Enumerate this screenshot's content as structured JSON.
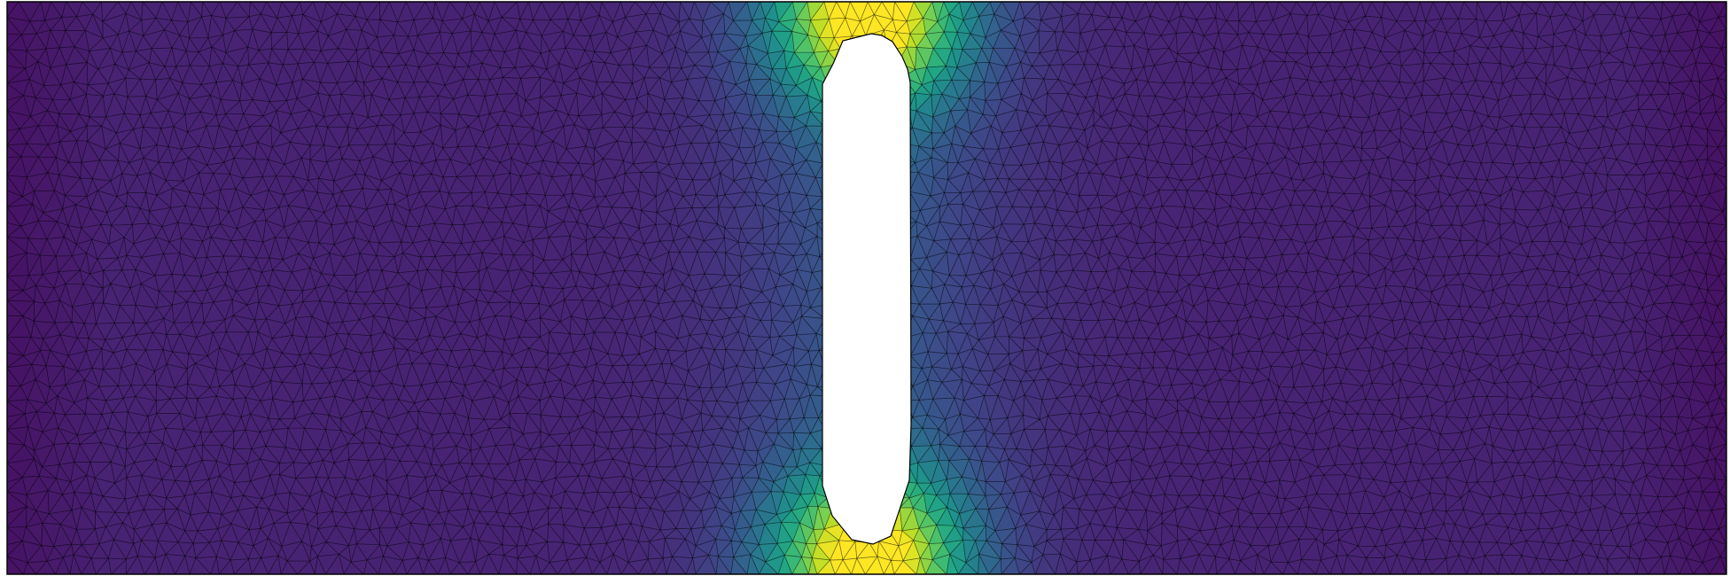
{
  "figure": {
    "kind": "finite-element-mesh-field",
    "colormap": "viridis",
    "colors": {
      "background": "#ffffff",
      "mesh_line": "#000000",
      "field_low": "#440154",
      "field_mid": "#21918c",
      "field_high": "#fde725"
    },
    "mesh": {
      "element_type": "triangle",
      "edges_visible": true
    },
    "domain": {
      "shape": "rectangular plate with central vertical slot",
      "hole_shape": "rounded vertical slot"
    },
    "field": {
      "concentration_sites": [
        "slot-top",
        "slot-bottom"
      ],
      "description_visible_text": ""
    }
  }
}
